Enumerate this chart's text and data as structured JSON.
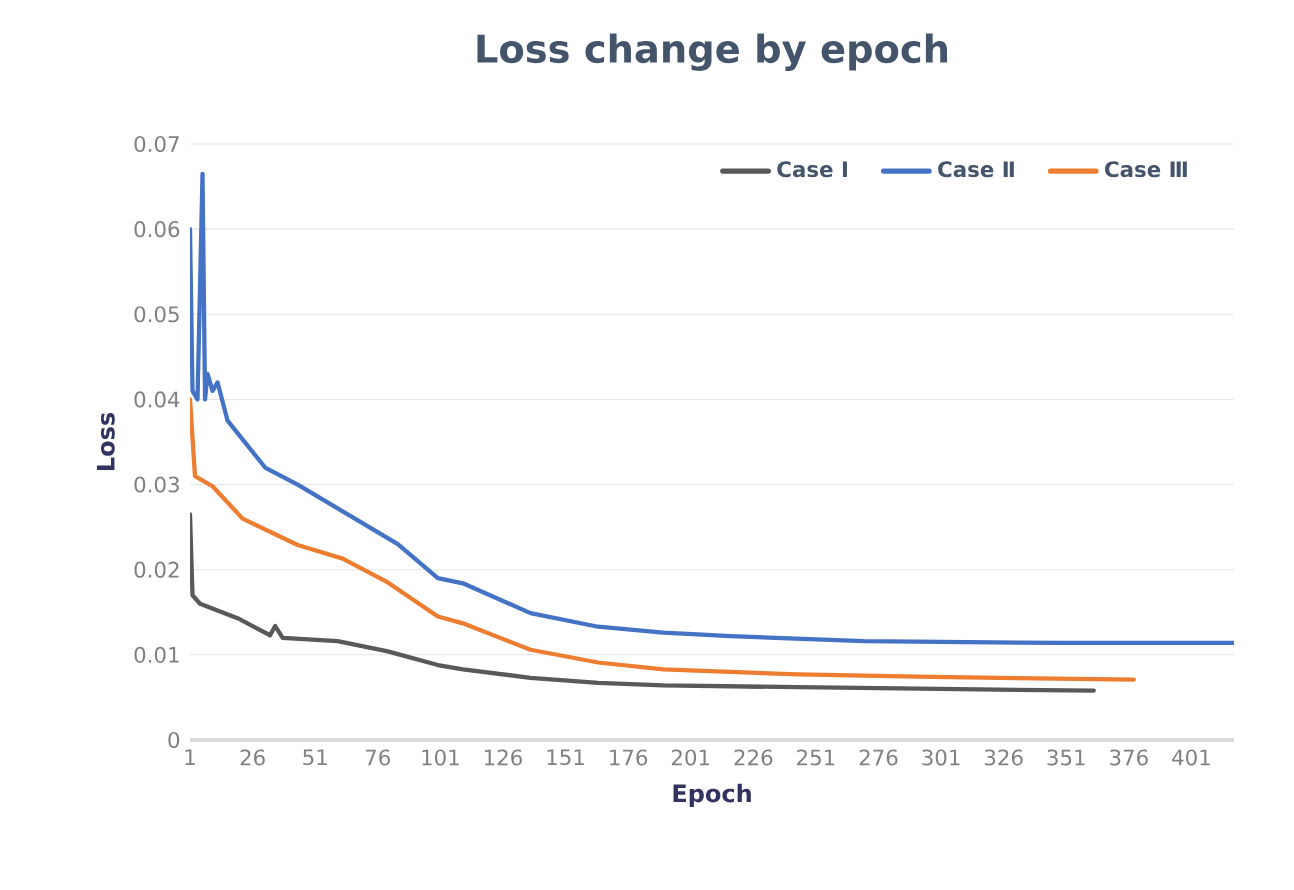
{
  "chart_data": {
    "type": "line",
    "title": "Loss change by epoch",
    "xlabel": "Epoch",
    "ylabel": "Loss",
    "xlim": [
      1,
      418
    ],
    "xticks": [
      1,
      26,
      51,
      76,
      101,
      126,
      151,
      176,
      201,
      226,
      251,
      276,
      301,
      326,
      351,
      376,
      401
    ],
    "ylim": [
      0,
      0.07
    ],
    "yticks": [
      0,
      0.01,
      0.02,
      0.03,
      0.04,
      0.05,
      0.06,
      0.07
    ],
    "grid": "y",
    "legend": "top right",
    "line_style": "solid",
    "marker": "none",
    "series": [
      {
        "name": "Case Ⅰ",
        "color": "#595959",
        "x": [
          1,
          2,
          5,
          20,
          33,
          35,
          38,
          60,
          80,
          100,
          110,
          137,
          164,
          190,
          244,
          324,
          362
        ],
        "values": [
          0.0265,
          0.017,
          0.016,
          0.0143,
          0.0123,
          0.0134,
          0.012,
          0.0116,
          0.0104,
          0.0088,
          0.0083,
          0.0073,
          0.0067,
          0.0064,
          0.0062,
          0.0059,
          0.0058
        ]
      },
      {
        "name": "Case Ⅱ",
        "color": "#4472c4",
        "x": [
          1,
          2,
          4,
          6,
          7,
          8,
          10,
          12,
          16,
          31,
          44,
          84,
          100,
          110,
          137,
          164,
          190,
          217,
          270,
          350,
          418
        ],
        "values": [
          0.06,
          0.041,
          0.04,
          0.0665,
          0.04,
          0.043,
          0.041,
          0.042,
          0.0375,
          0.032,
          0.03,
          0.023,
          0.019,
          0.0184,
          0.0149,
          0.0133,
          0.0126,
          0.0122,
          0.0116,
          0.0114,
          0.0114
        ]
      },
      {
        "name": "Case Ⅲ",
        "color": "#ed7d31",
        "x": [
          1,
          3,
          10,
          22,
          44,
          62,
          80,
          100,
          110,
          137,
          164,
          190,
          244,
          297,
          378
        ],
        "values": [
          0.04,
          0.031,
          0.0298,
          0.026,
          0.0229,
          0.0213,
          0.0185,
          0.0145,
          0.0137,
          0.0106,
          0.0091,
          0.0083,
          0.0077,
          0.0074,
          0.0071
        ]
      }
    ]
  }
}
